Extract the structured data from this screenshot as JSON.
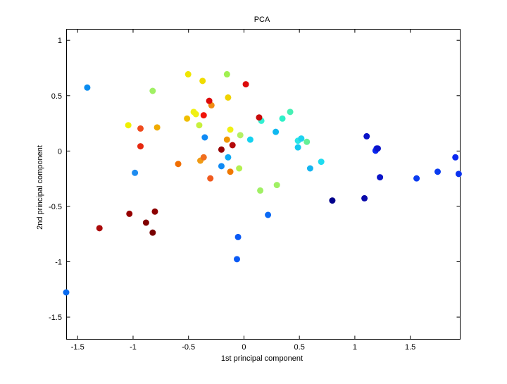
{
  "chart_data": {
    "type": "scatter",
    "title": "PCA",
    "xlabel": "1st principal component",
    "ylabel": "2nd principal component",
    "xlim": [
      -1.6,
      1.95
    ],
    "ylim": [
      -1.7,
      1.1
    ],
    "xticks": [
      -1.5,
      -1,
      -0.5,
      0,
      0.5,
      1,
      1.5
    ],
    "xtick_labels": [
      "-1.5",
      "-1",
      "-0.5",
      "0",
      "0.5",
      "1",
      "1.5"
    ],
    "yticks": [
      -1.5,
      -1,
      -0.5,
      0,
      0.5,
      1
    ],
    "ytick_labels": [
      "-1.5",
      "-1",
      "-0.5",
      "0",
      "0.5",
      "1"
    ],
    "grid": false,
    "legend": "none",
    "points": [
      {
        "x": -1.41,
        "y": 0.57,
        "color": "#0a8cf0"
      },
      {
        "x": -1.6,
        "y": -1.28,
        "color": "#0a6bf0"
      },
      {
        "x": -0.98,
        "y": -0.2,
        "color": "#1e8cf0"
      },
      {
        "x": -0.35,
        "y": 0.12,
        "color": "#0f8af5"
      },
      {
        "x": -0.2,
        "y": -0.14,
        "color": "#0f8af5"
      },
      {
        "x": -0.14,
        "y": -0.06,
        "color": "#0faaf5"
      },
      {
        "x": -0.05,
        "y": -0.78,
        "color": "#0a5af5"
      },
      {
        "x": -0.06,
        "y": -0.98,
        "color": "#0a5af5"
      },
      {
        "x": 0.22,
        "y": -0.58,
        "color": "#0a6af5"
      },
      {
        "x": 0.29,
        "y": 0.17,
        "color": "#0fb8f0"
      },
      {
        "x": 0.06,
        "y": 0.1,
        "color": "#14d2f0"
      },
      {
        "x": 0.16,
        "y": 0.27,
        "color": "#32f0d2"
      },
      {
        "x": 0.35,
        "y": 0.29,
        "color": "#2df0c8"
      },
      {
        "x": 0.42,
        "y": 0.35,
        "color": "#46f0b4"
      },
      {
        "x": 0.49,
        "y": 0.09,
        "color": "#2ae6e6"
      },
      {
        "x": 0.49,
        "y": 0.03,
        "color": "#14c8f0"
      },
      {
        "x": 0.52,
        "y": 0.11,
        "color": "#1ed2f0"
      },
      {
        "x": 0.57,
        "y": 0.08,
        "color": "#64f096"
      },
      {
        "x": 0.6,
        "y": -0.16,
        "color": "#14b4f0"
      },
      {
        "x": 0.7,
        "y": -0.1,
        "color": "#1edcf0"
      },
      {
        "x": 0.8,
        "y": -0.45,
        "color": "#00008c"
      },
      {
        "x": 1.09,
        "y": -0.43,
        "color": "#0a0aaa"
      },
      {
        "x": 1.11,
        "y": 0.13,
        "color": "#0a14c8"
      },
      {
        "x": 1.19,
        "y": 0.0,
        "color": "#0a28f0"
      },
      {
        "x": 1.2,
        "y": 0.02,
        "color": "#0a1ee6"
      },
      {
        "x": 1.21,
        "y": 0.02,
        "color": "#0a14c8"
      },
      {
        "x": 1.23,
        "y": -0.24,
        "color": "#0a14c8"
      },
      {
        "x": 1.56,
        "y": -0.25,
        "color": "#0a3cf0"
      },
      {
        "x": 1.75,
        "y": -0.19,
        "color": "#0a3cf0"
      },
      {
        "x": 1.91,
        "y": -0.06,
        "color": "#0a28f0"
      },
      {
        "x": 1.94,
        "y": -0.21,
        "color": "#0a32f0"
      },
      {
        "x": -0.82,
        "y": 0.54,
        "color": "#a0f064"
      },
      {
        "x": -0.15,
        "y": 0.69,
        "color": "#a0f050"
      },
      {
        "x": -0.4,
        "y": 0.23,
        "color": "#c8f03c"
      },
      {
        "x": 0.15,
        "y": -0.36,
        "color": "#a0f064"
      },
      {
        "x": 0.3,
        "y": -0.31,
        "color": "#a0f064"
      },
      {
        "x": -0.03,
        "y": 0.14,
        "color": "#b4f064"
      },
      {
        "x": -0.04,
        "y": -0.16,
        "color": "#b4f050"
      },
      {
        "x": -1.04,
        "y": 0.23,
        "color": "#f0f000"
      },
      {
        "x": -0.5,
        "y": 0.69,
        "color": "#f0e600"
      },
      {
        "x": -0.37,
        "y": 0.63,
        "color": "#f0dc00"
      },
      {
        "x": -0.45,
        "y": 0.35,
        "color": "#f0f014"
      },
      {
        "x": -0.43,
        "y": 0.33,
        "color": "#f0f014"
      },
      {
        "x": -0.12,
        "y": 0.19,
        "color": "#f0f014"
      },
      {
        "x": -0.14,
        "y": 0.48,
        "color": "#f0d200"
      },
      {
        "x": -0.51,
        "y": 0.29,
        "color": "#f0be00"
      },
      {
        "x": -0.78,
        "y": 0.21,
        "color": "#f0aa00"
      },
      {
        "x": -0.15,
        "y": 0.1,
        "color": "#f09600"
      },
      {
        "x": -0.39,
        "y": -0.09,
        "color": "#f09b14"
      },
      {
        "x": -0.29,
        "y": 0.41,
        "color": "#f08c14"
      },
      {
        "x": -0.12,
        "y": -0.19,
        "color": "#f07800"
      },
      {
        "x": -0.59,
        "y": -0.12,
        "color": "#f06e00"
      },
      {
        "x": -0.36,
        "y": -0.06,
        "color": "#f06e1e"
      },
      {
        "x": -0.3,
        "y": -0.25,
        "color": "#f05a1e"
      },
      {
        "x": -0.93,
        "y": 0.2,
        "color": "#f04b1e"
      },
      {
        "x": -0.93,
        "y": 0.04,
        "color": "#e6280f"
      },
      {
        "x": -0.36,
        "y": 0.32,
        "color": "#f0140a"
      },
      {
        "x": -0.31,
        "y": 0.45,
        "color": "#dc0a0a"
      },
      {
        "x": 0.02,
        "y": 0.6,
        "color": "#dc0a0a"
      },
      {
        "x": 0.14,
        "y": 0.3,
        "color": "#c80a0a"
      },
      {
        "x": -0.1,
        "y": 0.05,
        "color": "#b40a0a"
      },
      {
        "x": -0.2,
        "y": 0.01,
        "color": "#960000"
      },
      {
        "x": -1.3,
        "y": -0.7,
        "color": "#aa0a0a"
      },
      {
        "x": -1.03,
        "y": -0.57,
        "color": "#960000"
      },
      {
        "x": -0.8,
        "y": -0.55,
        "color": "#8c0000"
      },
      {
        "x": -0.88,
        "y": -0.65,
        "color": "#800000"
      },
      {
        "x": -0.82,
        "y": -0.74,
        "color": "#780000"
      }
    ]
  }
}
